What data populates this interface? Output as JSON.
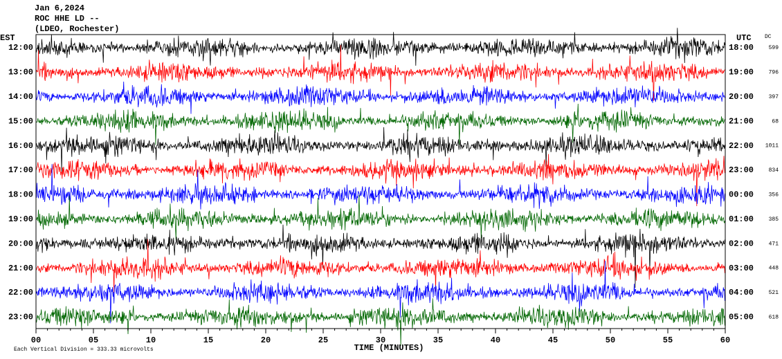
{
  "header": {
    "lines": [
      "Jan 6,2024",
      "ROC HHE LD --",
      "(LDEO, Rochester)"
    ],
    "left_zone": "EST",
    "right_zone": "UTC",
    "dc_label": "DC"
  },
  "rows": [
    {
      "est": "12:00",
      "utc": "18:00",
      "dc": 599
    },
    {
      "est": "13:00",
      "utc": "19:00",
      "dc": 796
    },
    {
      "est": "14:00",
      "utc": "20:00",
      "dc": 397
    },
    {
      "est": "15:00",
      "utc": "21:00",
      "dc": 68
    },
    {
      "est": "16:00",
      "utc": "22:00",
      "dc": 1011
    },
    {
      "est": "17:00",
      "utc": "23:00",
      "dc": 834
    },
    {
      "est": "18:00",
      "utc": "00:00",
      "dc": 356
    },
    {
      "est": "19:00",
      "utc": "01:00",
      "dc": 385
    },
    {
      "est": "20:00",
      "utc": "02:00",
      "dc": 471
    },
    {
      "est": "21:00",
      "utc": "03:00",
      "dc": 448
    },
    {
      "est": "22:00",
      "utc": "04:00",
      "dc": 521
    },
    {
      "est": "23:00",
      "utc": "05:00",
      "dc": 618
    }
  ],
  "x_axis": {
    "label": "TIME (MINUTES)",
    "xlim": [
      0,
      60
    ],
    "ticks": [
      {
        "value": 0,
        "label": "00"
      },
      {
        "value": 5,
        "label": "05"
      },
      10,
      15,
      20,
      25,
      30,
      35,
      40,
      45,
      50,
      55,
      60
    ]
  },
  "footer": "Each Vertical Division = 333.33 microvolts"
}
